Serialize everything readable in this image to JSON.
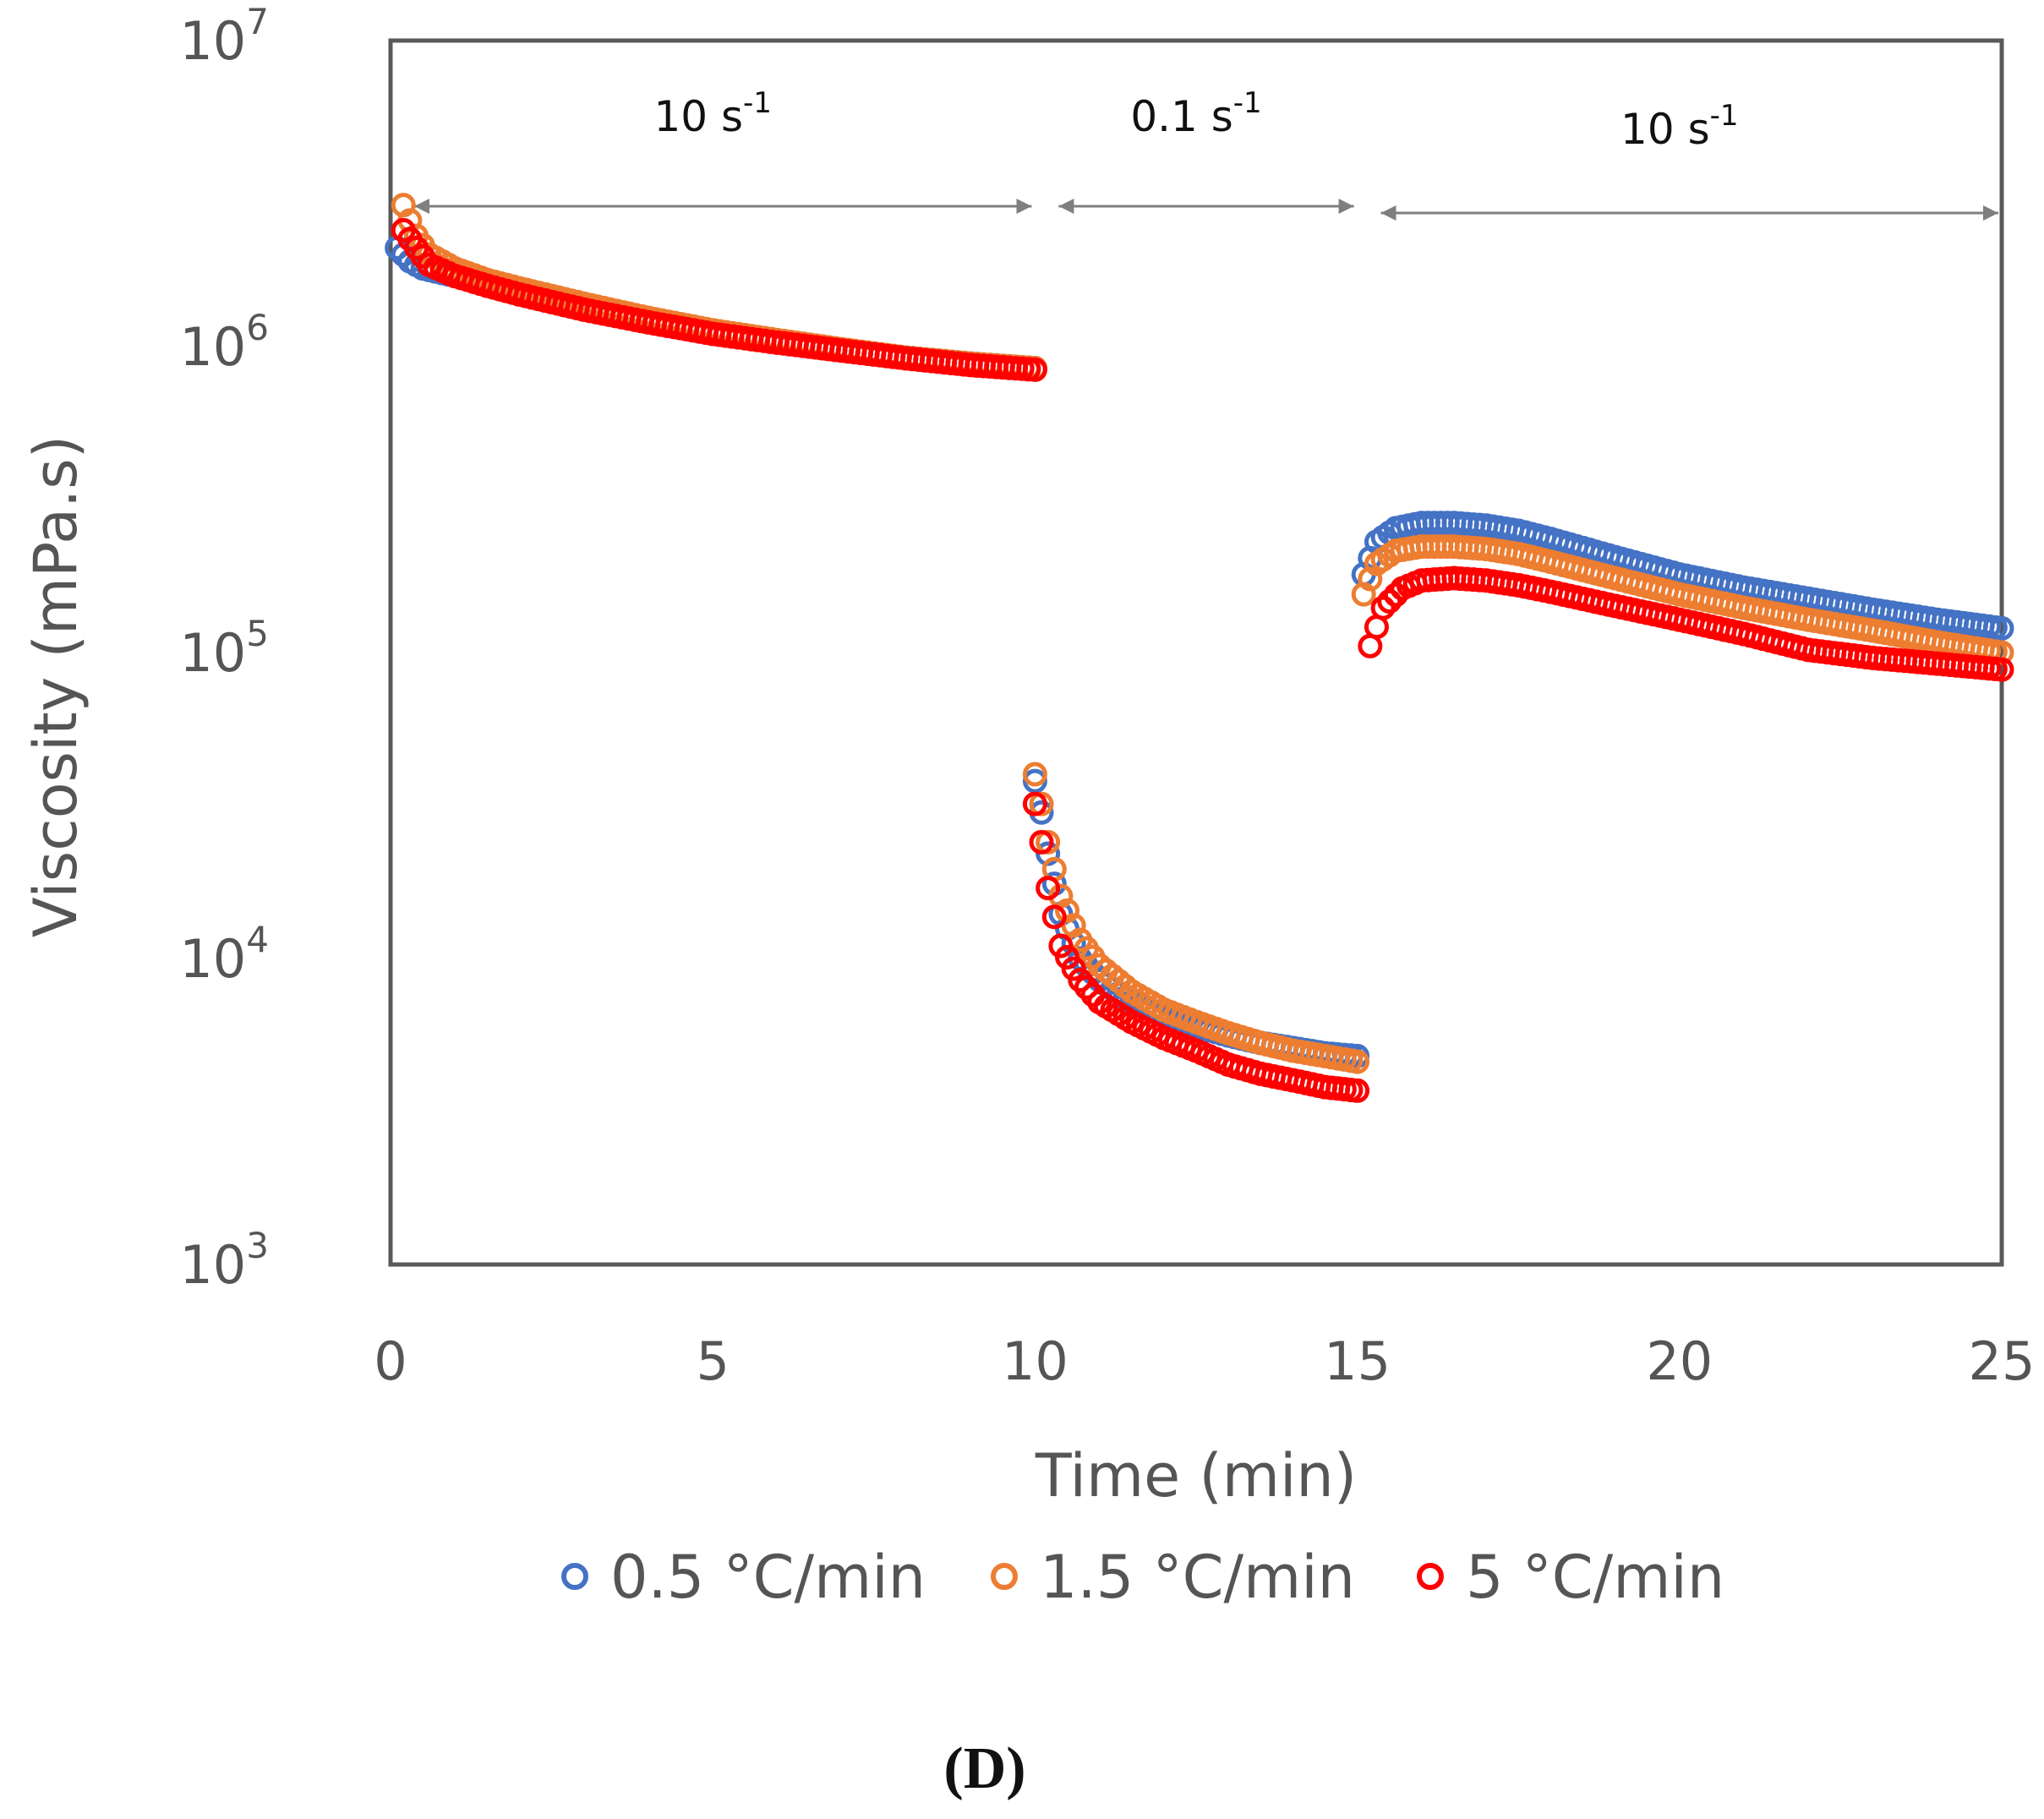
{
  "chart_data": {
    "type": "scatter",
    "title": "",
    "xlabel": "Time (min)",
    "ylabel": "Viscosity (mPa.s)",
    "xlim": [
      0,
      25
    ],
    "ylim": [
      1000,
      10000000
    ],
    "yscale": "log",
    "x_ticks": [
      "0",
      "5",
      "10",
      "15",
      "20",
      "25"
    ],
    "y_ticks": [
      {
        "base": "10",
        "exp": "3"
      },
      {
        "base": "10",
        "exp": "4"
      },
      {
        "base": "10",
        "exp": "5"
      },
      {
        "base": "10",
        "exp": "6"
      },
      {
        "base": "10",
        "exp": "7"
      }
    ],
    "regions": [
      {
        "base": "10 s",
        "exp": "-1",
        "x_start": 0,
        "x_end": 10
      },
      {
        "base": "0.1 s",
        "exp": "-1",
        "x_start": 10,
        "x_end": 15
      },
      {
        "base": "10 s",
        "exp": "-1",
        "x_start": 15,
        "x_end": 25
      }
    ],
    "legend_position": "bottom",
    "panel_label": "(D)",
    "series": [
      {
        "name": "0.5 °C/min",
        "color": "#4472C4",
        "segments": [
          {
            "x": [
              0.1,
              0.3,
              0.5,
              1,
              1.5,
              2,
              3,
              4,
              5,
              6,
              7,
              8,
              9,
              10
            ],
            "y": [
              2100000,
              1900000,
              1800000,
              1700000,
              1600000,
              1500000,
              1350000,
              1220000,
              1120000,
              1040000,
              970000,
              920000,
              880000,
              850000
            ]
          },
          {
            "x": [
              10,
              10.1,
              10.2,
              10.4,
              10.7,
              11,
              11.5,
              12,
              12.5,
              13,
              13.5,
              14,
              14.5,
              15
            ],
            "y": [
              38000,
              30000,
              22000,
              14000,
              10000,
              8500,
              7200,
              6500,
              6000,
              5600,
              5300,
              5100,
              4900,
              4800
            ]
          },
          {
            "x": [
              15.1,
              15.3,
              15.6,
              16,
              16.5,
              17,
              17.5,
              18,
              19,
              20,
              21,
              22,
              23,
              24,
              25
            ],
            "y": [
              180000,
              230000,
              255000,
              265000,
              265000,
              260000,
              250000,
              235000,
              205000,
              180000,
              163000,
              150000,
              138000,
              128000,
              120000
            ]
          }
        ]
      },
      {
        "name": "1.5 °C/min",
        "color": "#ED7D31",
        "segments": [
          {
            "x": [
              0.2,
              0.4,
              0.6,
              1,
              1.5,
              2,
              3,
              4,
              5,
              6,
              7,
              8,
              9,
              10
            ],
            "y": [
              2900000,
              2300000,
              2000000,
              1800000,
              1650000,
              1550000,
              1380000,
              1240000,
              1130000,
              1050000,
              980000,
              920000,
              880000,
              850000
            ]
          },
          {
            "x": [
              10,
              10.1,
              10.2,
              10.4,
              10.7,
              11,
              11.5,
              12,
              12.5,
              13,
              13.5,
              14,
              14.5,
              15
            ],
            "y": [
              40000,
              32000,
              24000,
              16000,
              11500,
              9500,
              7800,
              6800,
              6200,
              5700,
              5300,
              5000,
              4800,
              4600
            ]
          },
          {
            "x": [
              15.1,
              15.3,
              15.6,
              16,
              16.5,
              17,
              17.5,
              18,
              19,
              20,
              21,
              22,
              23,
              24,
              25
            ],
            "y": [
              155000,
              195000,
              215000,
              222000,
              222000,
              218000,
              210000,
              198000,
              175000,
              155000,
              140000,
              128000,
              118000,
              108000,
              100000
            ]
          }
        ]
      },
      {
        "name": "5 °C/min",
        "color": "#FF0000",
        "segments": [
          {
            "x": [
              0.2,
              0.4,
              0.6,
              1,
              1.5,
              2,
              3,
              4,
              5,
              6,
              7,
              8,
              9,
              10
            ],
            "y": [
              2400000,
              2100000,
              1850000,
              1700000,
              1580000,
              1480000,
              1320000,
              1200000,
              1100000,
              1030000,
              970000,
              915000,
              870000,
              840000
            ]
          },
          {
            "x": [
              10,
              10.1,
              10.2,
              10.4,
              10.7,
              11,
              11.5,
              12,
              12.5,
              13,
              13.5,
              14,
              14.5,
              15
            ],
            "y": [
              32000,
              24000,
              17000,
              11000,
              8500,
              7200,
              6200,
              5500,
              5000,
              4500,
              4200,
              4000,
              3800,
              3700
            ]
          },
          {
            "x": [
              15.2,
              15.4,
              15.7,
              16,
              16.5,
              17,
              17.5,
              18,
              19,
              20,
              21,
              22,
              23,
              24,
              25
            ],
            "y": [
              105000,
              140000,
              162000,
              172000,
              175000,
              172000,
              166000,
              158000,
              142000,
              128000,
              115000,
              102000,
              96000,
              92000,
              88000
            ]
          }
        ]
      }
    ]
  }
}
